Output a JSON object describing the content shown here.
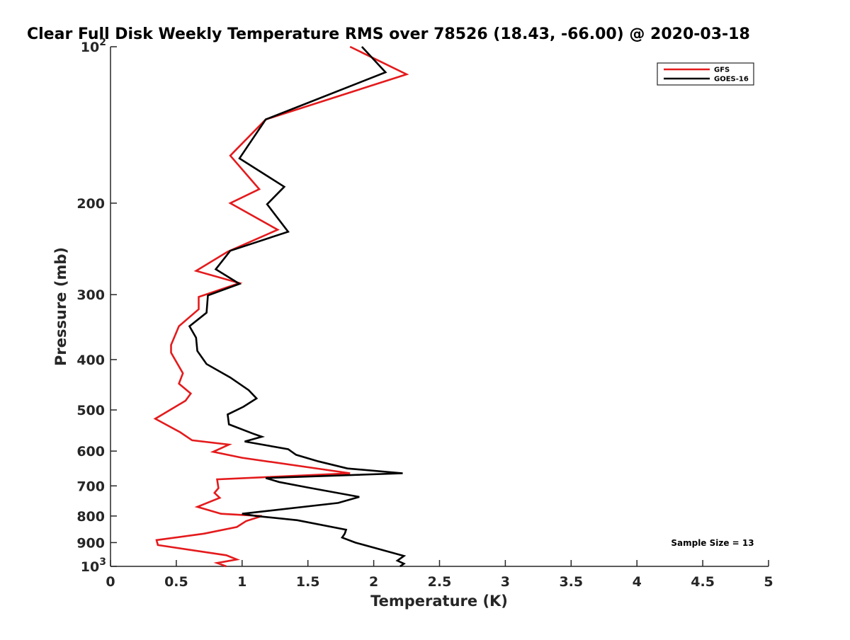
{
  "chart_data": {
    "type": "line",
    "title": "Clear Full Disk Weekly Temperature RMS over 78526 (18.43, -66.00) @ 2020-03-18",
    "xlabel": "Temperature (K)",
    "ylabel": "Pressure (mb)",
    "xlim": [
      0,
      5
    ],
    "ylim": [
      100,
      1000
    ],
    "yscale": "log",
    "y_reversed": true,
    "grid": false,
    "legend_position": "top-right",
    "x_ticks": [
      0,
      0.5,
      1,
      1.5,
      2,
      2.5,
      3,
      3.5,
      4,
      4.5,
      5
    ],
    "x_tick_labels": [
      "0",
      "0.5",
      "1",
      "1.5",
      "2",
      "2.5",
      "3",
      "3.5",
      "4",
      "4.5",
      "5"
    ],
    "y_ticks": [
      {
        "value": 100,
        "label": "10",
        "sup": "2"
      },
      {
        "value": 200,
        "label": "200",
        "sup": ""
      },
      {
        "value": 300,
        "label": "300",
        "sup": ""
      },
      {
        "value": 400,
        "label": "400",
        "sup": ""
      },
      {
        "value": 500,
        "label": "500",
        "sup": ""
      },
      {
        "value": 600,
        "label": "600",
        "sup": ""
      },
      {
        "value": 700,
        "label": "700",
        "sup": ""
      },
      {
        "value": 800,
        "label": "800",
        "sup": ""
      },
      {
        "value": 900,
        "label": "900",
        "sup": ""
      },
      {
        "value": 1000,
        "label": "10",
        "sup": "3"
      }
    ],
    "annotation": "Sample Size = 13",
    "series": [
      {
        "name": "GFS",
        "color": "#e41a1c",
        "points": [
          {
            "x": 1.82,
            "y": 100
          },
          {
            "x": 2.25,
            "y": 113
          },
          {
            "x": 1.18,
            "y": 138
          },
          {
            "x": 0.91,
            "y": 162
          },
          {
            "x": 1.13,
            "y": 188
          },
          {
            "x": 0.91,
            "y": 200
          },
          {
            "x": 1.27,
            "y": 225
          },
          {
            "x": 0.89,
            "y": 248
          },
          {
            "x": 0.65,
            "y": 270
          },
          {
            "x": 0.98,
            "y": 285
          },
          {
            "x": 0.67,
            "y": 303
          },
          {
            "x": 0.67,
            "y": 320
          },
          {
            "x": 0.52,
            "y": 345
          },
          {
            "x": 0.46,
            "y": 375
          },
          {
            "x": 0.46,
            "y": 388
          },
          {
            "x": 0.55,
            "y": 425
          },
          {
            "x": 0.52,
            "y": 445
          },
          {
            "x": 0.61,
            "y": 465
          },
          {
            "x": 0.57,
            "y": 480
          },
          {
            "x": 0.34,
            "y": 520
          },
          {
            "x": 0.53,
            "y": 552
          },
          {
            "x": 0.62,
            "y": 572
          },
          {
            "x": 0.9,
            "y": 583
          },
          {
            "x": 0.78,
            "y": 602
          },
          {
            "x": 1.0,
            "y": 618
          },
          {
            "x": 1.82,
            "y": 662
          },
          {
            "x": 0.81,
            "y": 680
          },
          {
            "x": 0.82,
            "y": 707
          },
          {
            "x": 0.79,
            "y": 722
          },
          {
            "x": 0.83,
            "y": 738
          },
          {
            "x": 0.66,
            "y": 768
          },
          {
            "x": 0.84,
            "y": 792
          },
          {
            "x": 1.15,
            "y": 800
          },
          {
            "x": 1.03,
            "y": 818
          },
          {
            "x": 0.96,
            "y": 840
          },
          {
            "x": 0.71,
            "y": 865
          },
          {
            "x": 0.35,
            "y": 890
          },
          {
            "x": 0.36,
            "y": 910
          },
          {
            "x": 0.88,
            "y": 952
          },
          {
            "x": 0.96,
            "y": 970
          },
          {
            "x": 0.81,
            "y": 985
          },
          {
            "x": 0.88,
            "y": 1000
          }
        ]
      },
      {
        "name": "GOES-16",
        "color": "#000000",
        "points": [
          {
            "x": 1.91,
            "y": 100
          },
          {
            "x": 2.09,
            "y": 112
          },
          {
            "x": 1.18,
            "y": 138
          },
          {
            "x": 0.98,
            "y": 164
          },
          {
            "x": 1.32,
            "y": 186
          },
          {
            "x": 1.19,
            "y": 201
          },
          {
            "x": 1.35,
            "y": 227
          },
          {
            "x": 0.91,
            "y": 247
          },
          {
            "x": 0.8,
            "y": 268
          },
          {
            "x": 0.98,
            "y": 286
          },
          {
            "x": 0.74,
            "y": 301
          },
          {
            "x": 0.73,
            "y": 325
          },
          {
            "x": 0.6,
            "y": 345
          },
          {
            "x": 0.65,
            "y": 363
          },
          {
            "x": 0.66,
            "y": 385
          },
          {
            "x": 0.73,
            "y": 408
          },
          {
            "x": 0.91,
            "y": 433
          },
          {
            "x": 1.05,
            "y": 458
          },
          {
            "x": 1.11,
            "y": 475
          },
          {
            "x": 1.01,
            "y": 493
          },
          {
            "x": 0.89,
            "y": 510
          },
          {
            "x": 0.9,
            "y": 533
          },
          {
            "x": 1.08,
            "y": 555
          },
          {
            "x": 1.15,
            "y": 563
          },
          {
            "x": 1.02,
            "y": 575
          },
          {
            "x": 1.35,
            "y": 595
          },
          {
            "x": 1.41,
            "y": 610
          },
          {
            "x": 1.58,
            "y": 628
          },
          {
            "x": 1.8,
            "y": 648
          },
          {
            "x": 2.22,
            "y": 662
          },
          {
            "x": 1.18,
            "y": 676
          },
          {
            "x": 1.28,
            "y": 688
          },
          {
            "x": 1.5,
            "y": 705
          },
          {
            "x": 1.89,
            "y": 735
          },
          {
            "x": 1.73,
            "y": 755
          },
          {
            "x": 1.0,
            "y": 792
          },
          {
            "x": 1.11,
            "y": 800
          },
          {
            "x": 1.42,
            "y": 815
          },
          {
            "x": 1.79,
            "y": 850
          },
          {
            "x": 1.78,
            "y": 865
          },
          {
            "x": 1.76,
            "y": 880
          },
          {
            "x": 1.86,
            "y": 900
          },
          {
            "x": 2.23,
            "y": 955
          },
          {
            "x": 2.18,
            "y": 975
          },
          {
            "x": 2.23,
            "y": 988
          },
          {
            "x": 2.2,
            "y": 1000
          }
        ]
      }
    ]
  }
}
